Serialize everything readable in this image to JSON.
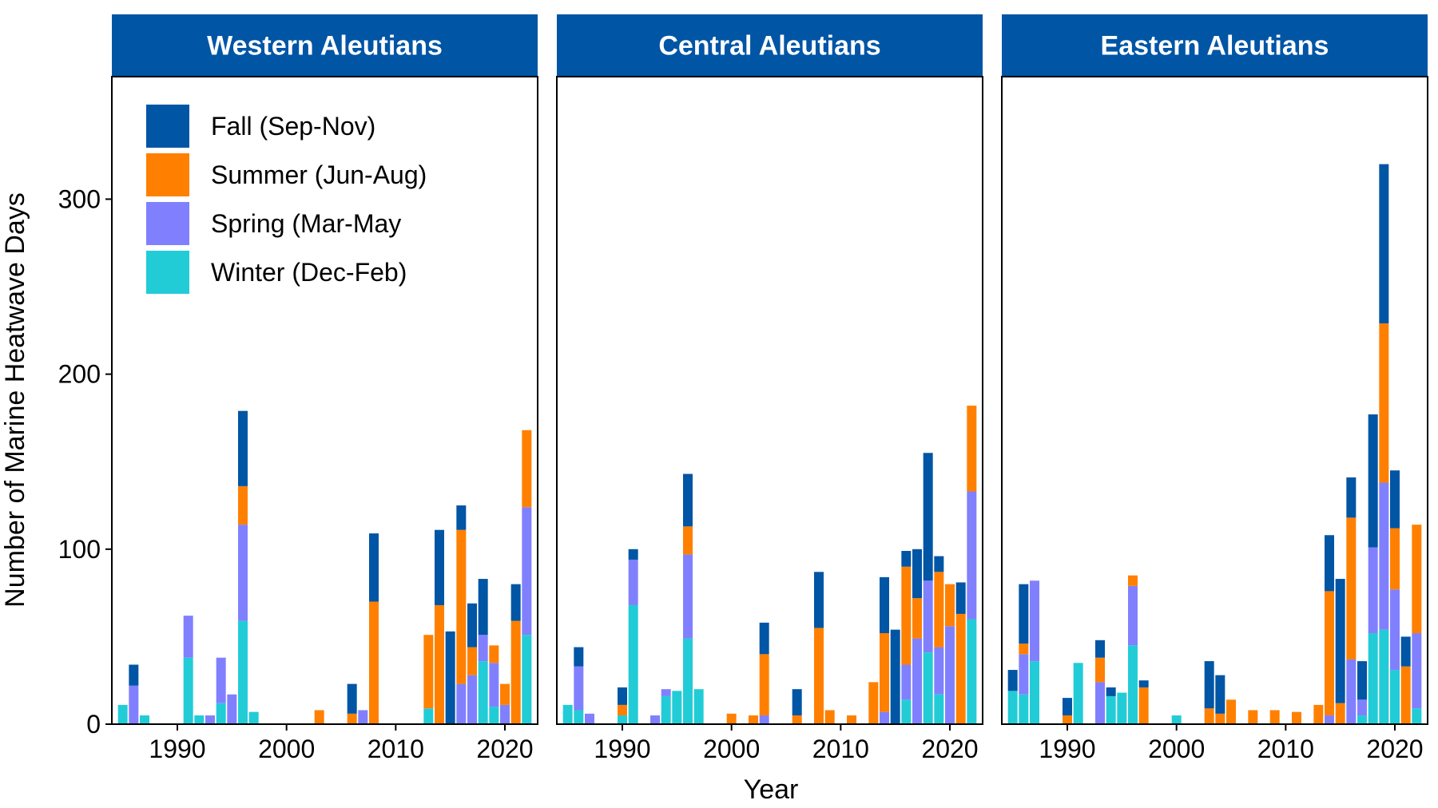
{
  "chart_data": {
    "type": "bar",
    "stacked": true,
    "ylabel": "Number of Marine Heatwave Days",
    "xlabel": "Year",
    "ylim": [
      0,
      370
    ],
    "xlim": [
      1984,
      2023
    ],
    "x_ticks": [
      1990,
      2000,
      2010,
      2020
    ],
    "y_ticks": [
      0,
      100,
      200,
      300
    ],
    "legend_position": "top-left",
    "series": [
      {
        "key": "fall",
        "name": "Fall (Sep-Nov)",
        "color": "#0055a5"
      },
      {
        "key": "summer",
        "name": "Summer (Jun-Aug)",
        "color": "#ff8000"
      },
      {
        "key": "spring",
        "name": "Spring (Mar-May",
        "color": "#8080ff"
      },
      {
        "key": "winter",
        "name": "Winter (Dec-Feb)",
        "color": "#22ccd6"
      }
    ],
    "panels": [
      {
        "title": "Western Aleutians",
        "bars": [
          {
            "year": 1985,
            "winter": 11,
            "spring": 0,
            "summer": 0,
            "fall": 0
          },
          {
            "year": 1986,
            "winter": 0,
            "spring": 22,
            "summer": 0,
            "fall": 12
          },
          {
            "year": 1987,
            "winter": 5,
            "spring": 0,
            "summer": 0,
            "fall": 0
          },
          {
            "year": 1991,
            "winter": 38,
            "spring": 24,
            "summer": 0,
            "fall": 0
          },
          {
            "year": 1992,
            "winter": 5,
            "spring": 0,
            "summer": 0,
            "fall": 0
          },
          {
            "year": 1993,
            "winter": 0,
            "spring": 5,
            "summer": 0,
            "fall": 0
          },
          {
            "year": 1994,
            "winter": 12,
            "spring": 26,
            "summer": 0,
            "fall": 0
          },
          {
            "year": 1995,
            "winter": 0,
            "spring": 17,
            "summer": 0,
            "fall": 0
          },
          {
            "year": 1996,
            "winter": 59,
            "spring": 55,
            "summer": 22,
            "fall": 43
          },
          {
            "year": 1997,
            "winter": 7,
            "spring": 0,
            "summer": 0,
            "fall": 0
          },
          {
            "year": 2003,
            "winter": 0,
            "spring": 0,
            "summer": 8,
            "fall": 0
          },
          {
            "year": 2006,
            "winter": 0,
            "spring": 0,
            "summer": 6,
            "fall": 17
          },
          {
            "year": 2007,
            "winter": 0,
            "spring": 8,
            "summer": 0,
            "fall": 0
          },
          {
            "year": 2008,
            "winter": 0,
            "spring": 0,
            "summer": 70,
            "fall": 39
          },
          {
            "year": 2013,
            "winter": 9,
            "spring": 0,
            "summer": 42,
            "fall": 0
          },
          {
            "year": 2014,
            "winter": 0,
            "spring": 0,
            "summer": 68,
            "fall": 43
          },
          {
            "year": 2015,
            "winter": 0,
            "spring": 0,
            "summer": 0,
            "fall": 53
          },
          {
            "year": 2016,
            "winter": 0,
            "spring": 23,
            "summer": 88,
            "fall": 14
          },
          {
            "year": 2017,
            "winter": 0,
            "spring": 28,
            "summer": 16,
            "fall": 25
          },
          {
            "year": 2018,
            "winter": 36,
            "spring": 15,
            "summer": 0,
            "fall": 32
          },
          {
            "year": 2019,
            "winter": 10,
            "spring": 25,
            "summer": 10,
            "fall": 0
          },
          {
            "year": 2020,
            "winter": 0,
            "spring": 11,
            "summer": 12,
            "fall": 0
          },
          {
            "year": 2021,
            "winter": 0,
            "spring": 0,
            "summer": 59,
            "fall": 21
          },
          {
            "year": 2022,
            "winter": 51,
            "spring": 73,
            "summer": 44,
            "fall": 0
          }
        ]
      },
      {
        "title": "Central Aleutians",
        "bars": [
          {
            "year": 1985,
            "winter": 11,
            "spring": 0,
            "summer": 0,
            "fall": 0
          },
          {
            "year": 1986,
            "winter": 8,
            "spring": 25,
            "summer": 0,
            "fall": 11
          },
          {
            "year": 1987,
            "winter": 0,
            "spring": 6,
            "summer": 0,
            "fall": 0
          },
          {
            "year": 1990,
            "winter": 5,
            "spring": 0,
            "summer": 6,
            "fall": 10
          },
          {
            "year": 1991,
            "winter": 68,
            "spring": 26,
            "summer": 0,
            "fall": 6
          },
          {
            "year": 1993,
            "winter": 0,
            "spring": 5,
            "summer": 0,
            "fall": 0
          },
          {
            "year": 1994,
            "winter": 16,
            "spring": 4,
            "summer": 0,
            "fall": 0
          },
          {
            "year": 1995,
            "winter": 19,
            "spring": 0,
            "summer": 0,
            "fall": 0
          },
          {
            "year": 1996,
            "winter": 49,
            "spring": 48,
            "summer": 16,
            "fall": 30
          },
          {
            "year": 1997,
            "winter": 20,
            "spring": 0,
            "summer": 0,
            "fall": 0
          },
          {
            "year": 2000,
            "winter": 0,
            "spring": 0,
            "summer": 6,
            "fall": 0
          },
          {
            "year": 2002,
            "winter": 0,
            "spring": 0,
            "summer": 5,
            "fall": 0
          },
          {
            "year": 2003,
            "winter": 0,
            "spring": 5,
            "summer": 35,
            "fall": 18
          },
          {
            "year": 2006,
            "winter": 0,
            "spring": 0,
            "summer": 5,
            "fall": 15
          },
          {
            "year": 2008,
            "winter": 0,
            "spring": 0,
            "summer": 55,
            "fall": 32
          },
          {
            "year": 2009,
            "winter": 0,
            "spring": 0,
            "summer": 8,
            "fall": 0
          },
          {
            "year": 2011,
            "winter": 0,
            "spring": 0,
            "summer": 5,
            "fall": 0
          },
          {
            "year": 2013,
            "winter": 0,
            "spring": 0,
            "summer": 24,
            "fall": 0
          },
          {
            "year": 2014,
            "winter": 0,
            "spring": 7,
            "summer": 45,
            "fall": 32
          },
          {
            "year": 2015,
            "winter": 0,
            "spring": 0,
            "summer": 0,
            "fall": 54
          },
          {
            "year": 2016,
            "winter": 14,
            "spring": 20,
            "summer": 56,
            "fall": 9
          },
          {
            "year": 2017,
            "winter": 0,
            "spring": 49,
            "summer": 23,
            "fall": 28
          },
          {
            "year": 2018,
            "winter": 41,
            "spring": 41,
            "summer": 0,
            "fall": 73
          },
          {
            "year": 2019,
            "winter": 17,
            "spring": 27,
            "summer": 43,
            "fall": 9
          },
          {
            "year": 2020,
            "winter": 0,
            "spring": 56,
            "summer": 24,
            "fall": 0
          },
          {
            "year": 2021,
            "winter": 0,
            "spring": 0,
            "summer": 63,
            "fall": 18
          },
          {
            "year": 2022,
            "winter": 60,
            "spring": 73,
            "summer": 49,
            "fall": 0
          }
        ]
      },
      {
        "title": "Eastern Aleutians",
        "bars": [
          {
            "year": 1985,
            "winter": 19,
            "spring": 0,
            "summer": 0,
            "fall": 12
          },
          {
            "year": 1986,
            "winter": 17,
            "spring": 23,
            "summer": 6,
            "fall": 34
          },
          {
            "year": 1987,
            "winter": 36,
            "spring": 46,
            "summer": 0,
            "fall": 0
          },
          {
            "year": 1990,
            "winter": 0,
            "spring": 0,
            "summer": 5,
            "fall": 10
          },
          {
            "year": 1991,
            "winter": 35,
            "spring": 0,
            "summer": 0,
            "fall": 0
          },
          {
            "year": 1993,
            "winter": 0,
            "spring": 24,
            "summer": 14,
            "fall": 10
          },
          {
            "year": 1994,
            "winter": 16,
            "spring": 0,
            "summer": 0,
            "fall": 5
          },
          {
            "year": 1995,
            "winter": 18,
            "spring": 0,
            "summer": 0,
            "fall": 0
          },
          {
            "year": 1996,
            "winter": 45,
            "spring": 34,
            "summer": 6,
            "fall": 0
          },
          {
            "year": 1997,
            "winter": 0,
            "spring": 0,
            "summer": 21,
            "fall": 4
          },
          {
            "year": 2000,
            "winter": 5,
            "spring": 0,
            "summer": 0,
            "fall": 0
          },
          {
            "year": 2003,
            "winter": 0,
            "spring": 0,
            "summer": 9,
            "fall": 27
          },
          {
            "year": 2004,
            "winter": 0,
            "spring": 0,
            "summer": 6,
            "fall": 22
          },
          {
            "year": 2005,
            "winter": 0,
            "spring": 0,
            "summer": 14,
            "fall": 0
          },
          {
            "year": 2007,
            "winter": 0,
            "spring": 0,
            "summer": 8,
            "fall": 0
          },
          {
            "year": 2009,
            "winter": 0,
            "spring": 0,
            "summer": 8,
            "fall": 0
          },
          {
            "year": 2011,
            "winter": 0,
            "spring": 0,
            "summer": 7,
            "fall": 0
          },
          {
            "year": 2013,
            "winter": 0,
            "spring": 0,
            "summer": 11,
            "fall": 0
          },
          {
            "year": 2014,
            "winter": 0,
            "spring": 5,
            "summer": 71,
            "fall": 32
          },
          {
            "year": 2015,
            "winter": 0,
            "spring": 0,
            "summer": 12,
            "fall": 71
          },
          {
            "year": 2016,
            "winter": 0,
            "spring": 37,
            "summer": 81,
            "fall": 23
          },
          {
            "year": 2017,
            "winter": 5,
            "spring": 9,
            "summer": 0,
            "fall": 22
          },
          {
            "year": 2018,
            "winter": 52,
            "spring": 49,
            "summer": 0,
            "fall": 76
          },
          {
            "year": 2019,
            "winter": 54,
            "spring": 84,
            "summer": 91,
            "fall": 91
          },
          {
            "year": 2020,
            "winter": 31,
            "spring": 46,
            "summer": 35,
            "fall": 33
          },
          {
            "year": 2021,
            "winter": 0,
            "spring": 0,
            "summer": 33,
            "fall": 17
          },
          {
            "year": 2022,
            "winter": 9,
            "spring": 43,
            "summer": 62,
            "fall": 0
          }
        ]
      }
    ]
  }
}
